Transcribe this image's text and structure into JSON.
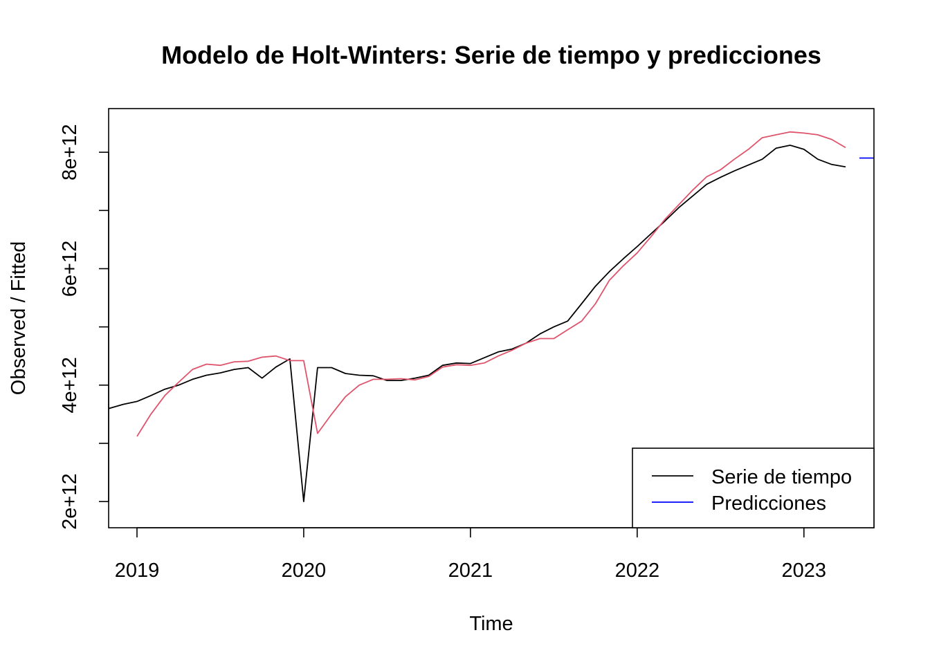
{
  "chart_data": {
    "type": "line",
    "title": "Modelo de Holt-Winters: Serie de tiempo y predicciones",
    "xlabel": "Time",
    "ylabel": "Observed / Fitted",
    "xlim": [
      2018.83,
      2023.42
    ],
    "ylim": [
      1550000000000.0,
      8750000000000.0
    ],
    "x_ticks": [
      2019,
      2020,
      2021,
      2022,
      2023
    ],
    "x_tick_labels": [
      "2019",
      "2020",
      "2021",
      "2022",
      "2023"
    ],
    "y_ticks": [
      2000000000000.0,
      3000000000000.0,
      4000000000000.0,
      5000000000000.0,
      6000000000000.0,
      7000000000000.0,
      8000000000000.0
    ],
    "y_tick_labels": [
      "2e+12",
      "",
      "4e+12",
      "",
      "6e+12",
      "",
      "8e+12"
    ],
    "grid": false,
    "legend_position": "bottom-right",
    "series": [
      {
        "name": "Serie de tiempo",
        "color": "#000000",
        "x": [
          2018.833,
          2018.917,
          2019.0,
          2019.083,
          2019.167,
          2019.25,
          2019.333,
          2019.417,
          2019.5,
          2019.583,
          2019.667,
          2019.75,
          2019.833,
          2019.917,
          2020.0,
          2020.083,
          2020.167,
          2020.25,
          2020.333,
          2020.417,
          2020.5,
          2020.583,
          2020.667,
          2020.75,
          2020.833,
          2020.917,
          2021.0,
          2021.083,
          2021.167,
          2021.25,
          2021.333,
          2021.417,
          2021.5,
          2021.583,
          2021.667,
          2021.75,
          2021.833,
          2021.917,
          2022.0,
          2022.083,
          2022.167,
          2022.25,
          2022.333,
          2022.417,
          2022.5,
          2022.583,
          2022.667,
          2022.75,
          2022.833,
          2022.917,
          2023.0,
          2023.083,
          2023.167,
          2023.25
        ],
        "values": [
          3600000000000.0,
          3670000000000.0,
          3720000000000.0,
          3820000000000.0,
          3930000000000.0,
          4000000000000.0,
          4100000000000.0,
          4170000000000.0,
          4210000000000.0,
          4270000000000.0,
          4300000000000.0,
          4120000000000.0,
          4310000000000.0,
          4450000000000.0,
          2000000000000.0,
          4300000000000.0,
          4300000000000.0,
          4200000000000.0,
          4170000000000.0,
          4160000000000.0,
          4080000000000.0,
          4080000000000.0,
          4120000000000.0,
          4170000000000.0,
          4340000000000.0,
          4380000000000.0,
          4370000000000.0,
          4470000000000.0,
          4570000000000.0,
          4620000000000.0,
          4720000000000.0,
          4880000000000.0,
          5000000000000.0,
          5100000000000.0,
          5400000000000.0,
          5700000000000.0,
          5950000000000.0,
          6170000000000.0,
          6380000000000.0,
          6600000000000.0,
          6820000000000.0,
          7050000000000.0,
          7250000000000.0,
          7450000000000.0,
          7570000000000.0,
          7680000000000.0,
          7780000000000.0,
          7880000000000.0,
          8070000000000.0,
          8120000000000.0,
          8050000000000.0,
          7880000000000.0,
          7790000000000.0,
          7750000000000.0
        ]
      },
      {
        "name": "",
        "color": "#DF536B",
        "x": [
          2019.0,
          2019.083,
          2019.167,
          2019.25,
          2019.333,
          2019.417,
          2019.5,
          2019.583,
          2019.667,
          2019.75,
          2019.833,
          2019.917,
          2020.0,
          2020.083,
          2020.167,
          2020.25,
          2020.333,
          2020.417,
          2020.5,
          2020.583,
          2020.667,
          2020.75,
          2020.833,
          2020.917,
          2021.0,
          2021.083,
          2021.167,
          2021.25,
          2021.333,
          2021.417,
          2021.5,
          2021.583,
          2021.667,
          2021.75,
          2021.833,
          2021.917,
          2022.0,
          2022.083,
          2022.167,
          2022.25,
          2022.333,
          2022.417,
          2022.5,
          2022.583,
          2022.667,
          2022.75,
          2022.833,
          2022.917,
          2023.0,
          2023.083,
          2023.167,
          2023.25
        ],
        "values": [
          3120000000000.0,
          3500000000000.0,
          3820000000000.0,
          4050000000000.0,
          4270000000000.0,
          4360000000000.0,
          4340000000000.0,
          4400000000000.0,
          4410000000000.0,
          4480000000000.0,
          4500000000000.0,
          4420000000000.0,
          4420000000000.0,
          3170000000000.0,
          3500000000000.0,
          3800000000000.0,
          4000000000000.0,
          4100000000000.0,
          4100000000000.0,
          4110000000000.0,
          4090000000000.0,
          4150000000000.0,
          4310000000000.0,
          4350000000000.0,
          4340000000000.0,
          4380000000000.0,
          4500000000000.0,
          4600000000000.0,
          4720000000000.0,
          4800000000000.0,
          4800000000000.0,
          4950000000000.0,
          5100000000000.0,
          5400000000000.0,
          5800000000000.0,
          6050000000000.0,
          6270000000000.0,
          6550000000000.0,
          6850000000000.0,
          7100000000000.0,
          7350000000000.0,
          7580000000000.0,
          7700000000000.0,
          7880000000000.0,
          8050000000000.0,
          8250000000000.0,
          8300000000000.0,
          8350000000000.0,
          8330000000000.0,
          8300000000000.0,
          8220000000000.0,
          8080000000000.0
        ]
      },
      {
        "name": "Predicciones",
        "color": "#0000FF",
        "x": [
          2023.333,
          2023.42
        ],
        "values": [
          7900000000000.0,
          7900000000000.0
        ]
      }
    ]
  }
}
